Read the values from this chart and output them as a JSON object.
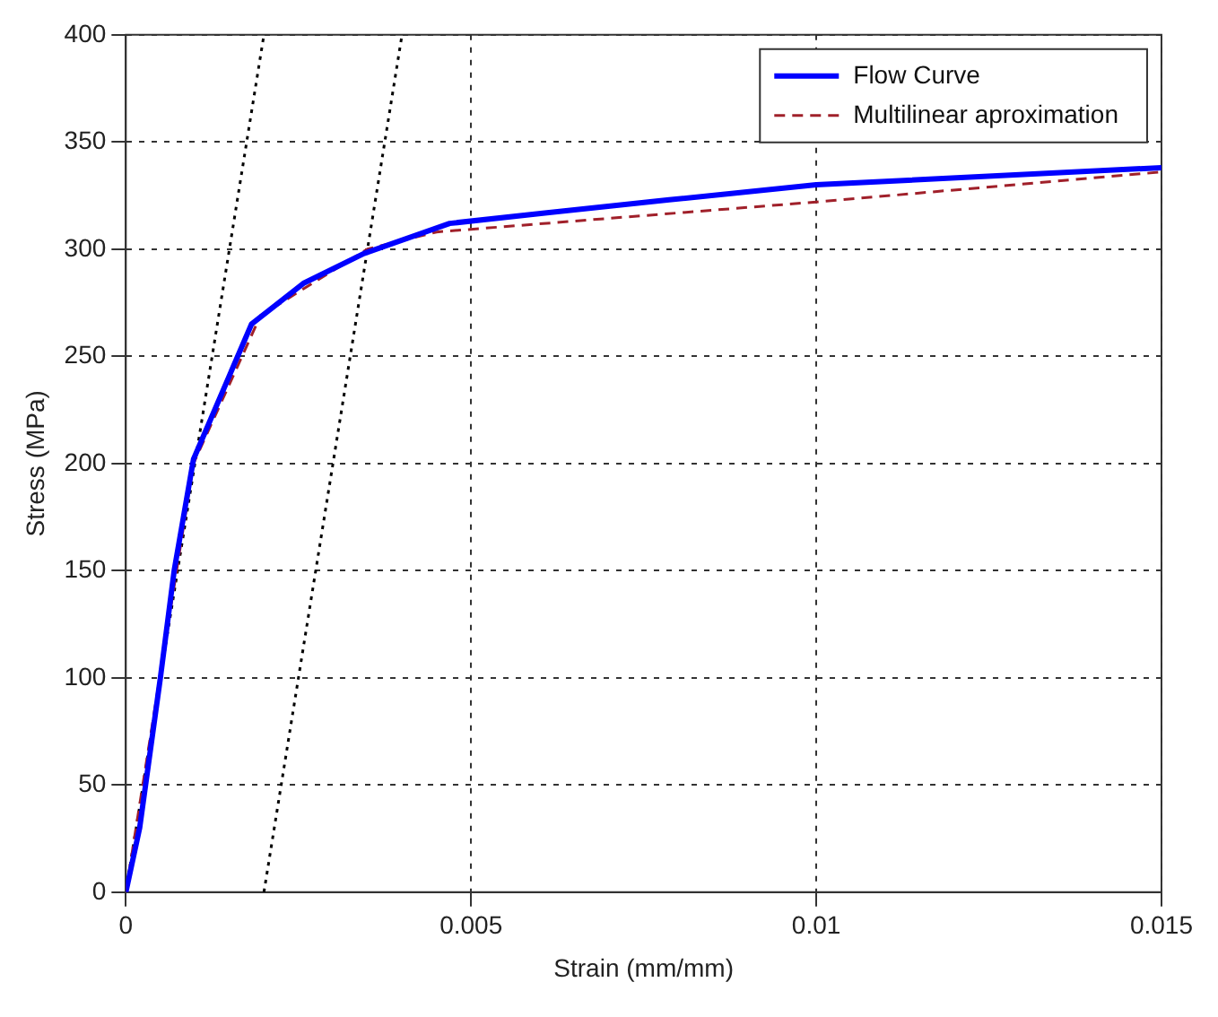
{
  "chart_data": {
    "type": "line",
    "xlabel": "Strain (mm/mm)",
    "ylabel": "Stress (MPa)",
    "xlim": [
      0,
      0.015
    ],
    "ylim": [
      0,
      400
    ],
    "xticks": [
      0,
      0.005,
      0.01,
      0.015
    ],
    "yticks": [
      0,
      50,
      100,
      150,
      200,
      250,
      300,
      350,
      400
    ],
    "grid": true,
    "legend": "top right",
    "marker": "none",
    "series": [
      {
        "name": "Flow Curve",
        "color": "#0000ff",
        "line_style": "solid",
        "x": [
          0,
          0.0002,
          0.0005,
          0.0007,
          0.00098,
          0.00182,
          0.00257,
          0.00345,
          0.00469,
          0.0061,
          0.00787,
          0.01,
          0.015
        ],
        "values": [
          0,
          30,
          100,
          150,
          202,
          265,
          284,
          298,
          312,
          317,
          323,
          330,
          338
        ]
      },
      {
        "name": "Multilinear aproximation",
        "color": "#a0202a",
        "line_style": "dashed",
        "x": [
          0,
          0.00098,
          0.00195,
          0.0035,
          0.0045,
          0.01,
          0.015
        ],
        "values": [
          0,
          200,
          269,
          300,
          308,
          322,
          336
        ]
      },
      {
        "color": "#000000",
        "line_style": "dotted",
        "x": [
          0,
          0.002
        ],
        "values": [
          0,
          400
        ]
      },
      {
        "color": "#000000",
        "line_style": "dotted",
        "x": [
          0.002,
          0.004
        ],
        "values": [
          0,
          400
        ]
      }
    ]
  }
}
